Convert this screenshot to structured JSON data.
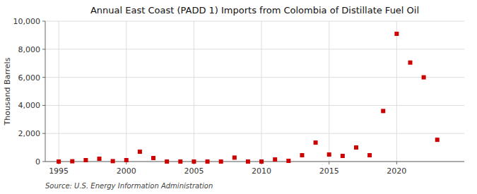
{
  "chart_data": {
    "type": "scatter",
    "title": "Annual East Coast (PADD 1) Imports from Colombia of Distillate Fuel Oil",
    "ylabel": "Thousand Barrels",
    "annotation": "Source: U.S. Energy Information Administration",
    "x": [
      1995,
      1996,
      1997,
      1998,
      1999,
      2000,
      2001,
      2002,
      2003,
      2004,
      2005,
      2006,
      2007,
      2008,
      2009,
      2010,
      2011,
      2012,
      2013,
      2014,
      2015,
      2016,
      2017,
      2018,
      2019,
      2020,
      2021,
      2022,
      2023
    ],
    "values": [
      0,
      20,
      100,
      200,
      30,
      100,
      700,
      250,
      0,
      0,
      0,
      0,
      0,
      280,
      0,
      0,
      150,
      50,
      450,
      1350,
      500,
      400,
      1000,
      450,
      3600,
      9100,
      7050,
      6000,
      1550
    ],
    "color": "#cc0000",
    "marker": "square",
    "xlim": [
      1994,
      2025
    ],
    "ylim": [
      0,
      10000
    ],
    "xticks": [
      1995,
      2000,
      2005,
      2010,
      2015,
      2020
    ],
    "yticks": [
      0,
      {
        "value": 2000,
        "label": "2,000"
      },
      {
        "value": 4000,
        "label": "4,000"
      },
      {
        "value": 6000,
        "label": "6,000"
      },
      {
        "value": 8000,
        "label": "8,000"
      },
      {
        "value": 10000,
        "label": "10,000"
      }
    ],
    "grid": true
  }
}
